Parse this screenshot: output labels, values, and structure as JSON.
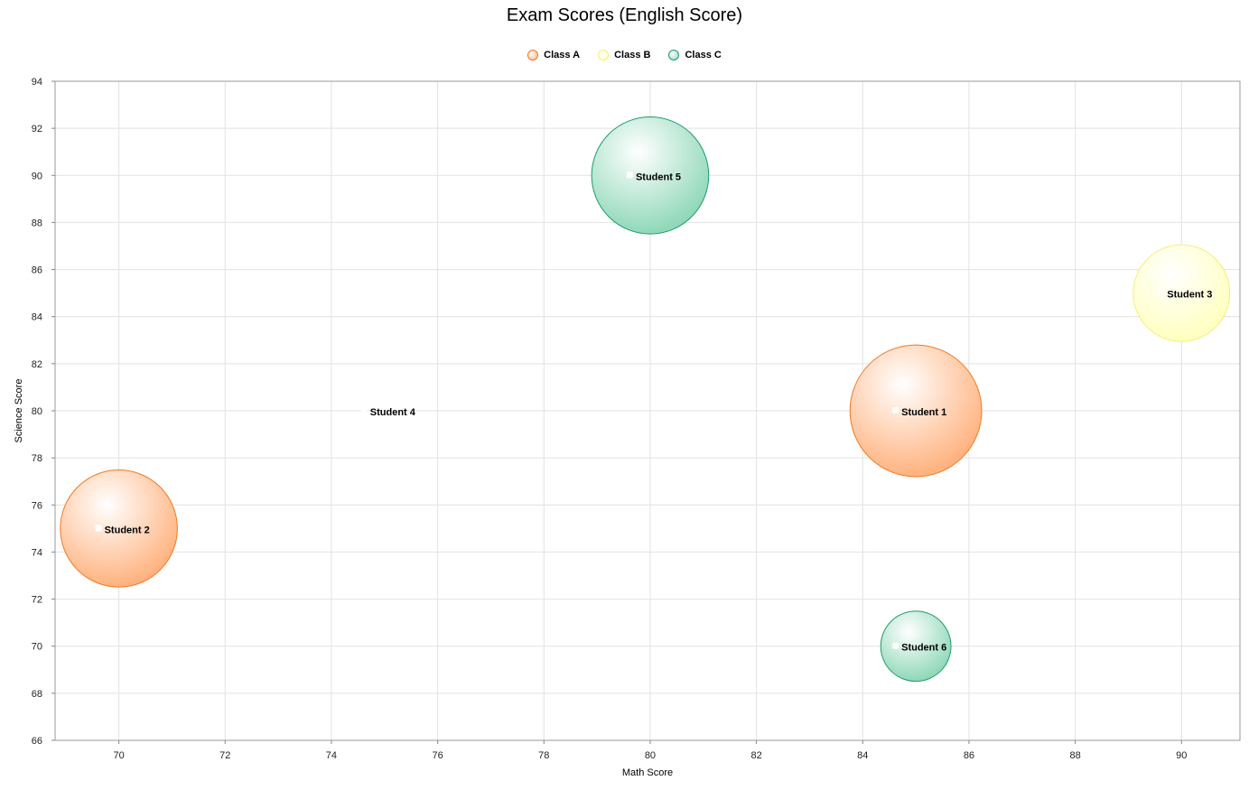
{
  "chart_data": {
    "type": "bubble",
    "title": "Exam Scores (English Score)",
    "xlabel": "Math Score",
    "ylabel": "Science Score",
    "xlim": [
      68.8,
      91.1
    ],
    "ylim": [
      66,
      94
    ],
    "xticks": [
      70,
      72,
      74,
      76,
      78,
      80,
      82,
      84,
      86,
      88,
      90
    ],
    "yticks": [
      66,
      68,
      70,
      72,
      74,
      76,
      78,
      80,
      82,
      84,
      86,
      88,
      90,
      92,
      94
    ],
    "grid": true,
    "legend_position": "top-center",
    "series": [
      {
        "name": "Class A",
        "color": "#f07a23",
        "fill": "#ffb27e",
        "points": [
          {
            "label": "Student 1",
            "x": 85,
            "y": 80,
            "size": 90
          },
          {
            "label": "Student 2",
            "x": 70,
            "y": 75,
            "size": 80
          }
        ]
      },
      {
        "name": "Class B",
        "color": "#f4ef7a",
        "fill": "#ffffc0",
        "points": [
          {
            "label": "Student 3",
            "x": 90,
            "y": 85,
            "size": 66
          },
          {
            "label": "Student 4",
            "x": 75,
            "y": 80,
            "size": 0
          }
        ]
      },
      {
        "name": "Class C",
        "color": "#1f9a70",
        "fill": "#8fd8b8",
        "points": [
          {
            "label": "Student 5",
            "x": 80,
            "y": 90,
            "size": 80
          },
          {
            "label": "Student 6",
            "x": 85,
            "y": 70,
            "size": 48
          }
        ]
      }
    ]
  }
}
